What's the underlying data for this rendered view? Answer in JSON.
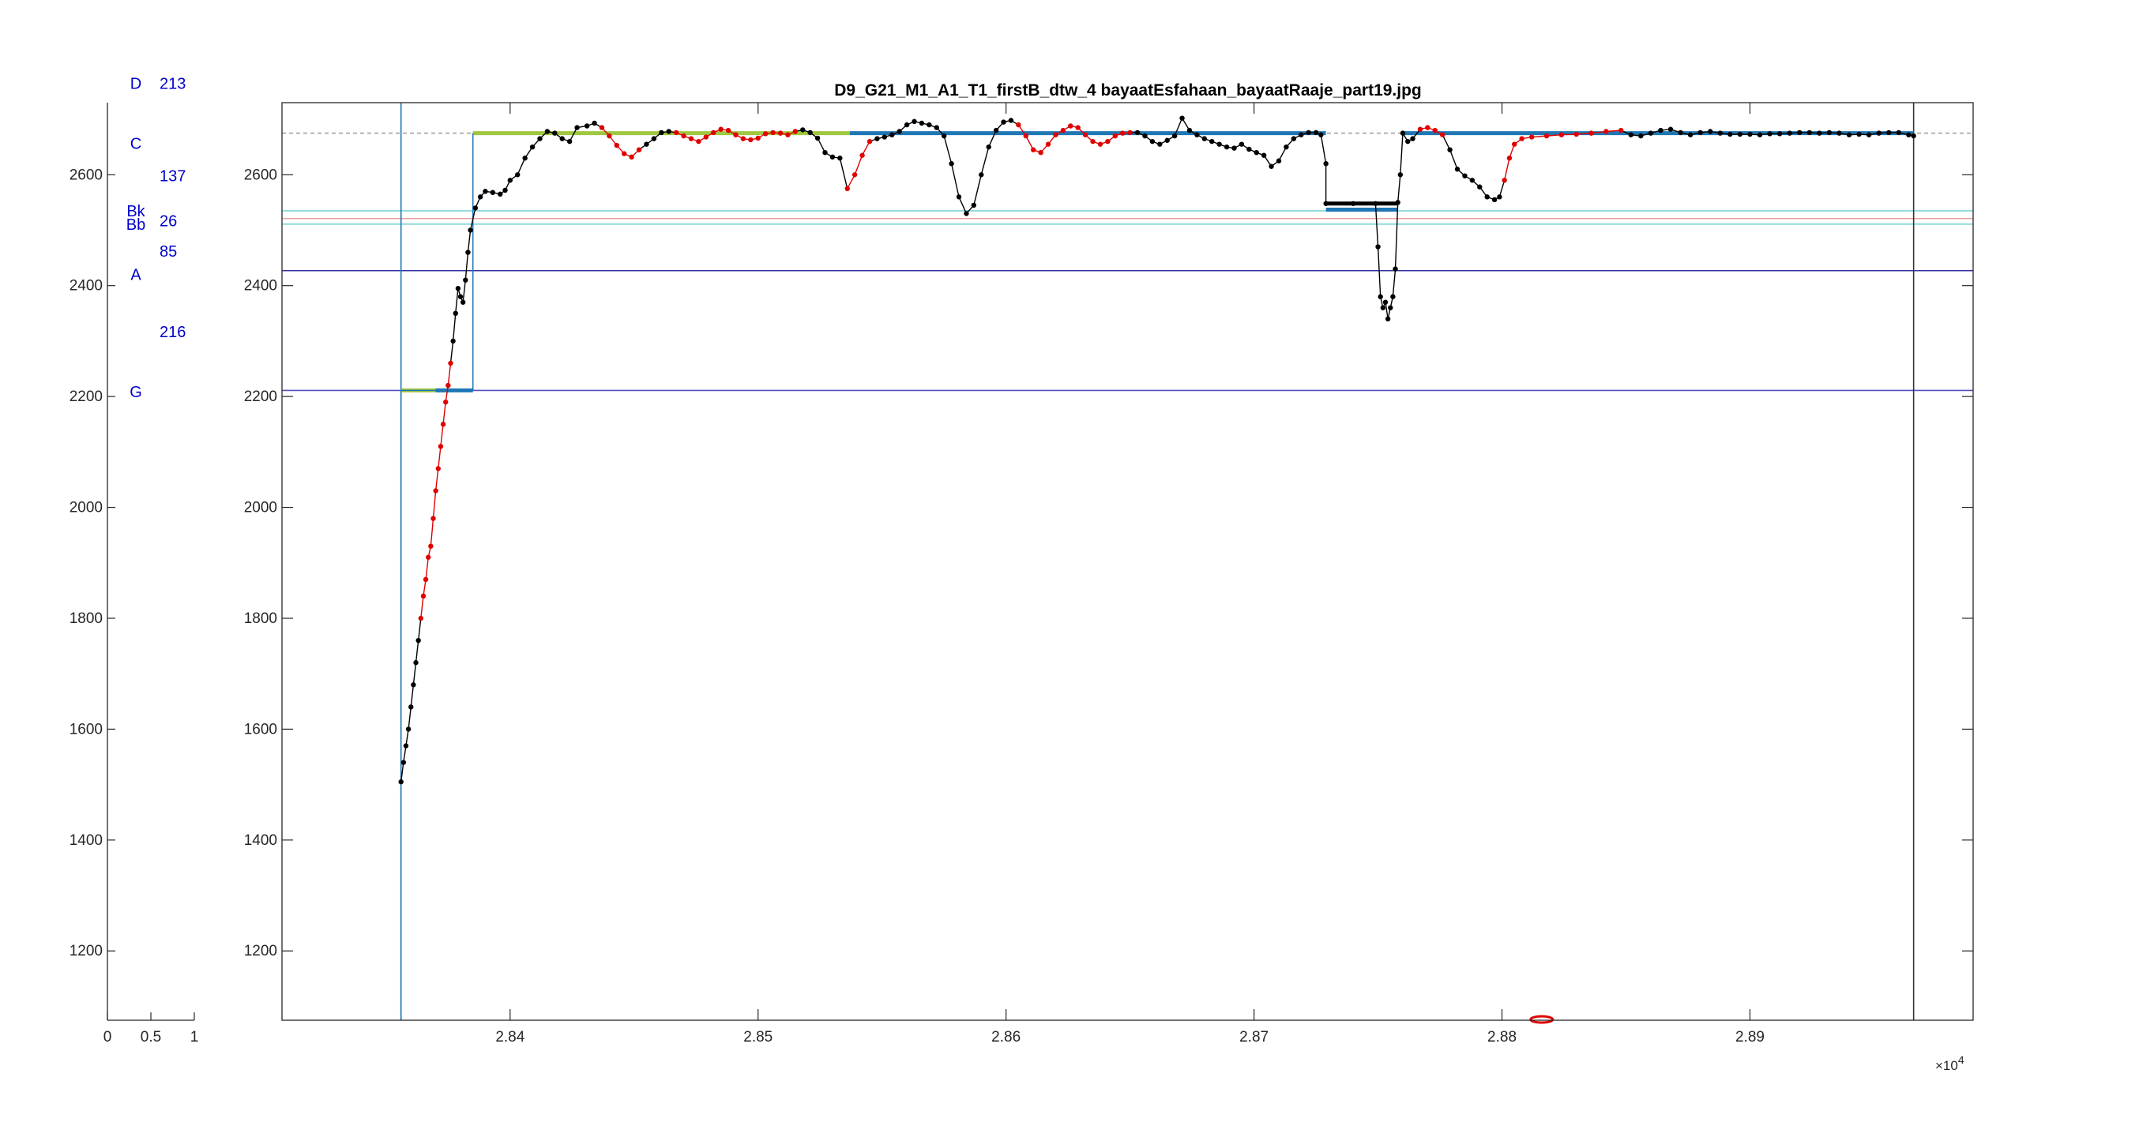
{
  "chart_data": [
    {
      "type": "scatter",
      "title": "",
      "xlabel": "",
      "ylabel": "",
      "xlim": [
        0,
        1
      ],
      "ylim": [
        1075,
        2730
      ],
      "x_ticks": [
        "0",
        "0.5",
        "1"
      ],
      "y_ticks": [
        "1200",
        "1400",
        "1600",
        "1800",
        "2000",
        "2200",
        "2400",
        "2600"
      ],
      "note_labels": [
        {
          "label": "D",
          "y": 2765
        },
        {
          "label": "C",
          "y": 2657
        },
        {
          "label": "Bk",
          "y": 2535
        },
        {
          "label": "Bb",
          "y": 2511
        },
        {
          "label": "A",
          "y": 2420
        },
        {
          "label": "G",
          "y": 2209
        }
      ],
      "interval_labels": [
        {
          "label": "213",
          "y": 2765
        },
        {
          "label": "137",
          "y": 2598
        },
        {
          "label": "26",
          "y": 2517
        },
        {
          "label": "85",
          "y": 2462
        },
        {
          "label": "216",
          "y": 2317
        }
      ],
      "colors": {
        "labels": "#0000cc",
        "axis": "#262626"
      }
    },
    {
      "type": "line",
      "title": "D9_G21_M1_A1_T1_firstB_dtw_4 bayaatEsfahaan_bayaatRaaje_part19.jpg",
      "xlabel": "",
      "ylabel": "",
      "x_exponent": "×10^4",
      "x_exponent_base": "×10",
      "x_exponent_power": "4",
      "xlim": [
        28308,
        28990
      ],
      "ylim": [
        1075,
        2730
      ],
      "x_ticks": [
        {
          "value": 28400,
          "label": "2.84"
        },
        {
          "value": 28500,
          "label": "2.85"
        },
        {
          "value": 28600,
          "label": "2.86"
        },
        {
          "value": 28700,
          "label": "2.87"
        },
        {
          "value": 28800,
          "label": "2.88"
        },
        {
          "value": 28900,
          "label": "2.89"
        }
      ],
      "y_ticks": [
        "1200",
        "1400",
        "1600",
        "1800",
        "2000",
        "2200",
        "2400",
        "2600"
      ],
      "grid": false,
      "reference_lines": [
        {
          "y": 2675,
          "color": "#9a9a9a",
          "style": "dashed"
        },
        {
          "y": 2535,
          "color": "#7fd4d4",
          "style": "solid"
        },
        {
          "y": 2521,
          "color": "#e8a0a0",
          "style": "solid"
        },
        {
          "y": 2511,
          "color": "#7fd4d4",
          "style": "solid"
        },
        {
          "y": 2427,
          "color": "#3030a0",
          "style": "solid"
        },
        {
          "y": 2211,
          "color": "#5050c0",
          "style": "solid"
        }
      ],
      "vertical_lines": [
        {
          "x": 28356,
          "color": "#1f77b4"
        },
        {
          "x": 28966,
          "color": "#333333"
        }
      ],
      "series": [
        {
          "role": "pitch contour",
          "colors": {
            "stable": "#000000",
            "transition": "#e00000"
          },
          "points": [
            [
              28356,
              1505
            ],
            [
              28357,
              1540
            ],
            [
              28358,
              1570
            ],
            [
              28359,
              1600
            ],
            [
              28360,
              1640
            ],
            [
              28361,
              1680
            ],
            [
              28362,
              1720
            ],
            [
              28363,
              1760
            ],
            [
              28364,
              1800
            ],
            [
              28365,
              1840
            ],
            [
              28366,
              1870
            ],
            [
              28367,
              1910
            ],
            [
              28368,
              1930
            ],
            [
              28369,
              1980
            ],
            [
              28370,
              2030
            ],
            [
              28371,
              2070
            ],
            [
              28372,
              2110
            ],
            [
              28373,
              2150
            ],
            [
              28374,
              2190
            ],
            [
              28375,
              2220
            ],
            [
              28376,
              2260
            ],
            [
              28377,
              2300
            ],
            [
              28378,
              2350
            ],
            [
              28379,
              2395
            ],
            [
              28380,
              2380
            ],
            [
              28381,
              2370
            ],
            [
              28382,
              2410
            ],
            [
              28383,
              2460
            ],
            [
              28384,
              2500
            ],
            [
              28386,
              2540
            ],
            [
              28388,
              2560
            ],
            [
              28390,
              2570
            ],
            [
              28393,
              2568
            ],
            [
              28396,
              2565
            ],
            [
              28398,
              2572
            ],
            [
              28400,
              2590
            ],
            [
              28403,
              2600
            ],
            [
              28406,
              2630
            ],
            [
              28409,
              2650
            ],
            [
              28412,
              2665
            ],
            [
              28415,
              2678
            ],
            [
              28418,
              2675
            ],
            [
              28421,
              2665
            ],
            [
              28424,
              2660
            ],
            [
              28427,
              2685
            ],
            [
              28431,
              2688
            ],
            [
              28434,
              2693
            ],
            [
              28437,
              2685
            ],
            [
              28440,
              2670
            ],
            [
              28443,
              2653
            ],
            [
              28446,
              2638
            ],
            [
              28449,
              2632
            ],
            [
              28452,
              2645
            ],
            [
              28455,
              2655
            ],
            [
              28458,
              2665
            ],
            [
              28461,
              2676
            ],
            [
              28464,
              2678
            ],
            [
              28467,
              2676
            ],
            [
              28470,
              2670
            ],
            [
              28473,
              2665
            ],
            [
              28476,
              2660
            ],
            [
              28479,
              2668
            ],
            [
              28482,
              2676
            ],
            [
              28485,
              2682
            ],
            [
              28488,
              2680
            ],
            [
              28491,
              2672
            ],
            [
              28494,
              2665
            ],
            [
              28497,
              2663
            ],
            [
              28500,
              2666
            ],
            [
              28503,
              2674
            ],
            [
              28506,
              2676
            ],
            [
              28509,
              2675
            ],
            [
              28512,
              2672
            ],
            [
              28515,
              2678
            ],
            [
              28518,
              2681
            ],
            [
              28521,
              2676
            ],
            [
              28524,
              2666
            ],
            [
              28527,
              2640
            ],
            [
              28530,
              2632
            ],
            [
              28533,
              2630
            ],
            [
              28536,
              2575
            ],
            [
              28539,
              2600
            ],
            [
              28542,
              2635
            ],
            [
              28545,
              2660
            ],
            [
              28548,
              2665
            ],
            [
              28551,
              2668
            ],
            [
              28554,
              2672
            ],
            [
              28557,
              2678
            ],
            [
              28560,
              2690
            ],
            [
              28563,
              2696
            ],
            [
              28566,
              2693
            ],
            [
              28569,
              2690
            ],
            [
              28572,
              2685
            ],
            [
              28575,
              2670
            ],
            [
              28578,
              2620
            ],
            [
              28581,
              2560
            ],
            [
              28584,
              2530
            ],
            [
              28587,
              2545
            ],
            [
              28590,
              2600
            ],
            [
              28593,
              2650
            ],
            [
              28596,
              2680
            ],
            [
              28599,
              2695
            ],
            [
              28602,
              2698
            ],
            [
              28605,
              2690
            ],
            [
              28608,
              2670
            ],
            [
              28611,
              2645
            ],
            [
              28614,
              2640
            ],
            [
              28617,
              2655
            ],
            [
              28620,
              2672
            ],
            [
              28623,
              2680
            ],
            [
              28626,
              2688
            ],
            [
              28629,
              2685
            ],
            [
              28632,
              2672
            ],
            [
              28635,
              2660
            ],
            [
              28638,
              2655
            ],
            [
              28641,
              2660
            ],
            [
              28644,
              2670
            ],
            [
              28647,
              2675
            ],
            [
              28650,
              2676
            ],
            [
              28653,
              2676
            ],
            [
              28656,
              2670
            ],
            [
              28659,
              2660
            ],
            [
              28662,
              2655
            ],
            [
              28665,
              2662
            ],
            [
              28668,
              2670
            ],
            [
              28671,
              2702
            ],
            [
              28674,
              2680
            ],
            [
              28677,
              2672
            ],
            [
              28680,
              2665
            ],
            [
              28683,
              2660
            ],
            [
              28686,
              2655
            ],
            [
              28689,
              2650
            ],
            [
              28692,
              2648
            ],
            [
              28695,
              2655
            ],
            [
              28698,
              2646
            ],
            [
              28701,
              2640
            ],
            [
              28704,
              2635
            ],
            [
              28707,
              2615
            ],
            [
              28710,
              2625
            ],
            [
              28713,
              2650
            ],
            [
              28716,
              2665
            ],
            [
              28719,
              2672
            ],
            [
              28722,
              2676
            ],
            [
              28725,
              2676
            ],
            [
              28727,
              2672
            ],
            [
              28729,
              2620
            ],
            [
              28729,
              2548
            ],
            [
              28740,
              2548
            ],
            [
              28749,
              2548
            ],
            [
              28750,
              2470
            ],
            [
              28751,
              2380
            ],
            [
              28752,
              2360
            ],
            [
              28753,
              2370
            ],
            [
              28754,
              2340
            ],
            [
              28755,
              2360
            ],
            [
              28756,
              2380
            ],
            [
              28757,
              2430
            ],
            [
              28758,
              2550
            ],
            [
              28759,
              2600
            ],
            [
              28760,
              2675
            ],
            [
              28762,
              2660
            ],
            [
              28764,
              2665
            ],
            [
              28767,
              2682
            ],
            [
              28770,
              2685
            ],
            [
              28773,
              2680
            ],
            [
              28776,
              2672
            ],
            [
              28779,
              2645
            ],
            [
              28782,
              2610
            ],
            [
              28785,
              2598
            ],
            [
              28788,
              2590
            ],
            [
              28791,
              2578
            ],
            [
              28794,
              2560
            ],
            [
              28797,
              2555
            ],
            [
              28799,
              2560
            ],
            [
              28801,
              2590
            ],
            [
              28803,
              2630
            ],
            [
              28805,
              2655
            ],
            [
              28808,
              2665
            ],
            [
              28812,
              2668
            ],
            [
              28818,
              2670
            ],
            [
              28824,
              2672
            ],
            [
              28830,
              2673
            ],
            [
              28836,
              2675
            ],
            [
              28842,
              2678
            ],
            [
              28848,
              2680
            ],
            [
              28852,
              2672
            ],
            [
              28856,
              2670
            ],
            [
              28860,
              2675
            ],
            [
              28864,
              2680
            ],
            [
              28868,
              2682
            ],
            [
              28872,
              2676
            ],
            [
              28876,
              2672
            ],
            [
              28880,
              2676
            ],
            [
              28884,
              2678
            ],
            [
              28888,
              2675
            ],
            [
              28892,
              2673
            ],
            [
              28896,
              2673
            ],
            [
              28900,
              2673
            ],
            [
              28904,
              2672
            ],
            [
              28908,
              2674
            ],
            [
              28912,
              2674
            ],
            [
              28916,
              2675
            ],
            [
              28920,
              2676
            ],
            [
              28924,
              2676
            ],
            [
              28928,
              2675
            ],
            [
              28932,
              2676
            ],
            [
              28936,
              2675
            ],
            [
              28940,
              2672
            ],
            [
              28944,
              2673
            ],
            [
              28948,
              2672
            ],
            [
              28952,
              2675
            ],
            [
              28956,
              2676
            ],
            [
              28960,
              2676
            ],
            [
              28964,
              2672
            ],
            [
              28966,
              2670
            ]
          ]
        },
        {
          "role": "note segments",
          "color": "#1f77b4",
          "segments": [
            {
              "x1": 28356,
              "x2": 28376,
              "y": 2211,
              "color": "#a0c840"
            },
            {
              "x1": 28370,
              "x2": 28385,
              "y": 2211,
              "color": "#1f77b4"
            },
            {
              "x1": 28385,
              "x2": 28537,
              "y": 2675,
              "color": "#a0c840"
            },
            {
              "x1": 28537,
              "x2": 28729,
              "y": 2675,
              "color": "#1f77b4"
            },
            {
              "x1": 28729,
              "x2": 28758,
              "y": 2548,
              "color": "#000000"
            },
            {
              "x1": 28729,
              "x2": 28758,
              "y": 2537,
              "color": "#1f77b4"
            },
            {
              "x1": 28760,
              "x2": 28966,
              "y": 2675,
              "color": "#1f77b4"
            }
          ],
          "outlier": {
            "x": 28816,
            "y": 1075,
            "color": "#e00000"
          }
        }
      ]
    }
  ]
}
